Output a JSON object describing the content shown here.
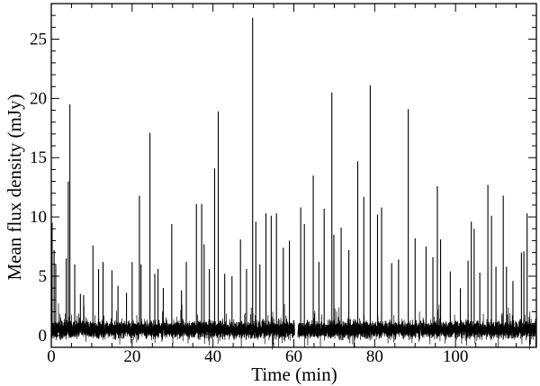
{
  "chart_data": {
    "type": "line",
    "title": "",
    "xlabel": "Time (min)",
    "ylabel": "Mean flux density (mJy)",
    "xlim": [
      0,
      120
    ],
    "ylim": [
      -1,
      28
    ],
    "x_ticks": [
      0,
      20,
      40,
      60,
      80,
      100
    ],
    "y_ticks": [
      0,
      5,
      10,
      15,
      20,
      25
    ],
    "grid": false,
    "legend": "none",
    "line_color": "#000000",
    "baseline_range": [
      -0.5,
      1.5
    ],
    "gap": [
      60.2,
      61.0
    ],
    "series": [
      {
        "peaks": [
          {
            "x": 0.2,
            "y": 9.5
          },
          {
            "x": 0.7,
            "y": 7.2
          },
          {
            "x": 1.1,
            "y": 6.0
          },
          {
            "x": 3.7,
            "y": 6.5
          },
          {
            "x": 4.2,
            "y": 13.0
          },
          {
            "x": 4.6,
            "y": 19.5
          },
          {
            "x": 5.8,
            "y": 6.0
          },
          {
            "x": 7.2,
            "y": 3.5
          },
          {
            "x": 8.0,
            "y": 3.4
          },
          {
            "x": 10.3,
            "y": 7.6
          },
          {
            "x": 11.7,
            "y": 5.6
          },
          {
            "x": 12.8,
            "y": 6.2
          },
          {
            "x": 15.0,
            "y": 5.5
          },
          {
            "x": 16.5,
            "y": 4.2
          },
          {
            "x": 18.6,
            "y": 3.6
          },
          {
            "x": 20.0,
            "y": 6.2
          },
          {
            "x": 21.8,
            "y": 11.8
          },
          {
            "x": 22.2,
            "y": 6.0
          },
          {
            "x": 24.4,
            "y": 17.1
          },
          {
            "x": 25.6,
            "y": 5.2
          },
          {
            "x": 26.4,
            "y": 5.6
          },
          {
            "x": 27.7,
            "y": 4.0
          },
          {
            "x": 29.8,
            "y": 9.4
          },
          {
            "x": 32.2,
            "y": 3.8
          },
          {
            "x": 33.4,
            "y": 6.2
          },
          {
            "x": 35.9,
            "y": 11.1
          },
          {
            "x": 37.2,
            "y": 11.1
          },
          {
            "x": 37.8,
            "y": 7.7
          },
          {
            "x": 39.1,
            "y": 5.6
          },
          {
            "x": 40.4,
            "y": 14.1
          },
          {
            "x": 41.3,
            "y": 18.9
          },
          {
            "x": 42.9,
            "y": 5.2
          },
          {
            "x": 44.7,
            "y": 5.0
          },
          {
            "x": 46.8,
            "y": 8.1
          },
          {
            "x": 48.3,
            "y": 5.6
          },
          {
            "x": 49.8,
            "y": 26.8
          },
          {
            "x": 50.6,
            "y": 9.6
          },
          {
            "x": 51.6,
            "y": 6.0
          },
          {
            "x": 53.1,
            "y": 10.3
          },
          {
            "x": 54.4,
            "y": 10.1
          },
          {
            "x": 55.7,
            "y": 10.3
          },
          {
            "x": 57.4,
            "y": 7.4
          },
          {
            "x": 58.9,
            "y": 8.0
          },
          {
            "x": 61.7,
            "y": 10.8
          },
          {
            "x": 62.6,
            "y": 9.4
          },
          {
            "x": 64.8,
            "y": 13.5
          },
          {
            "x": 66.2,
            "y": 6.2
          },
          {
            "x": 67.5,
            "y": 10.7
          },
          {
            "x": 69.4,
            "y": 20.5
          },
          {
            "x": 69.9,
            "y": 8.5
          },
          {
            "x": 71.7,
            "y": 9.1
          },
          {
            "x": 73.6,
            "y": 7.2
          },
          {
            "x": 75.8,
            "y": 14.7
          },
          {
            "x": 77.3,
            "y": 11.7
          },
          {
            "x": 78.9,
            "y": 21.1
          },
          {
            "x": 80.7,
            "y": 10.2
          },
          {
            "x": 81.7,
            "y": 10.8
          },
          {
            "x": 84.2,
            "y": 6.1
          },
          {
            "x": 85.9,
            "y": 6.4
          },
          {
            "x": 88.3,
            "y": 19.1
          },
          {
            "x": 90.0,
            "y": 8.2
          },
          {
            "x": 92.7,
            "y": 7.5
          },
          {
            "x": 94.4,
            "y": 6.6
          },
          {
            "x": 95.5,
            "y": 12.6
          },
          {
            "x": 96.3,
            "y": 8.1
          },
          {
            "x": 98.7,
            "y": 5.4
          },
          {
            "x": 101.2,
            "y": 4.0
          },
          {
            "x": 103.1,
            "y": 6.3
          },
          {
            "x": 103.9,
            "y": 9.6
          },
          {
            "x": 104.6,
            "y": 9.0
          },
          {
            "x": 106.0,
            "y": 5.3
          },
          {
            "x": 108.0,
            "y": 12.7
          },
          {
            "x": 108.9,
            "y": 10.1
          },
          {
            "x": 110.0,
            "y": 5.8
          },
          {
            "x": 111.8,
            "y": 11.8
          },
          {
            "x": 112.6,
            "y": 5.8
          },
          {
            "x": 114.2,
            "y": 4.6
          },
          {
            "x": 116.3,
            "y": 7.0
          },
          {
            "x": 116.9,
            "y": 7.1
          },
          {
            "x": 117.7,
            "y": 10.3
          }
        ]
      }
    ]
  }
}
